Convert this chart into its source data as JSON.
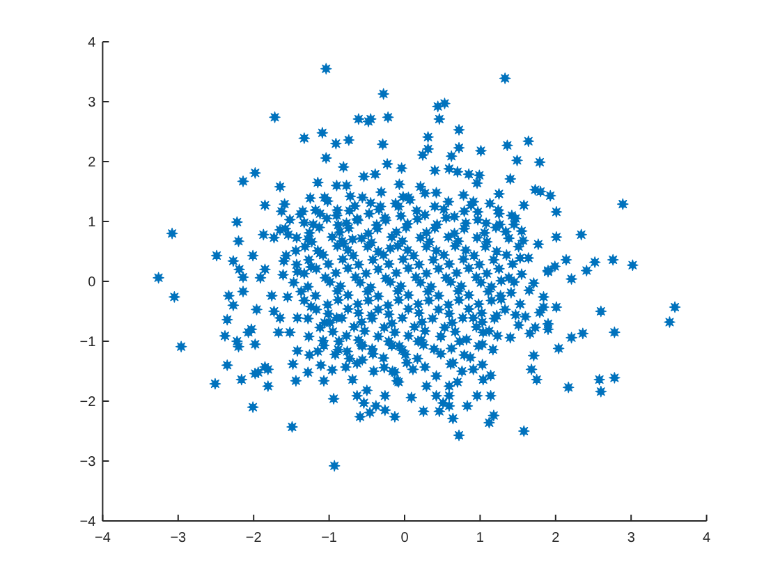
{
  "chart_data": {
    "type": "scatter",
    "color": "#0072bd",
    "marker": "star",
    "xlim": [
      -4,
      4
    ],
    "ylim": [
      -4,
      4
    ],
    "xticks": [
      -4,
      -3,
      -2,
      -1,
      0,
      1,
      2,
      3,
      4
    ],
    "yticks": [
      -4,
      -3,
      -2,
      -1,
      0,
      1,
      2,
      3,
      4
    ],
    "x": [
      -3.26,
      -3.08,
      -2.49,
      -2.27,
      -2.19,
      -2.14,
      -2.2,
      -2.22,
      -2.14,
      -1.98,
      -2.01,
      -1.91,
      -1.85,
      -1.87,
      -1.85,
      -1.72,
      -1.65,
      -1.33,
      -1.04,
      -1.09,
      -0.91,
      -1.04,
      -0.74,
      -0.81,
      -0.61,
      -0.48,
      -0.45,
      -0.22,
      -0.28,
      -0.29,
      -0.23,
      -0.39,
      -0.54,
      -0.04,
      -0.9,
      -0.77,
      -1.15,
      -1.25,
      -1.35,
      -1.59,
      -1.63,
      -1.73,
      -1.54,
      -1.65,
      -1.44,
      -1.6,
      -1.61,
      -1.33,
      -1.28,
      -1.12,
      -1.06,
      -0.89,
      -0.88,
      -0.81,
      -0.69,
      -1.12,
      -0.62,
      -0.56,
      -0.32,
      -0.08,
      -0.25,
      -0.19,
      -1.24,
      -1.42,
      1.33,
      0.44,
      0.53,
      0.46,
      0.31,
      0.72,
      0.24,
      0.31,
      0.72,
      0.62,
      1.01,
      1.36,
      1.64,
      1.49,
      1.79,
      1.4,
      0.4,
      0.59,
      0.7,
      0.85,
      0.99,
      0.96,
      1.25,
      1.73,
      1.8,
      1.93,
      1.58,
      2.01,
      2.89,
      1.25,
      1.45,
      2.01,
      2.34,
      1.77,
      2.14,
      2.52,
      2.76,
      3.02,
      2.41,
      2.21,
      1.9,
      1.99,
      1.53,
      1.34,
      1.08,
      0.91,
      0.79,
      0.42,
      0.21,
      -0.07,
      0.05,
      -3.05,
      -2.96,
      -2.51,
      -2.35,
      -2.38,
      -2.35,
      -2.33,
      -2.27,
      -2.14,
      -2.22,
      -2.2,
      -2.16,
      -2.01,
      -1.98,
      -2.07,
      -2.03,
      -1.96,
      -1.98,
      -1.94,
      -1.85,
      -1.81,
      -1.81,
      -1.76,
      -1.73,
      -1.65,
      -1.49,
      -1.48,
      -1.44,
      -1.28,
      -1.11,
      -1.07,
      -0.94,
      -0.93,
      -0.63,
      -0.59,
      -0.54,
      -0.5,
      -0.46,
      -0.38,
      -0.26,
      -0.26,
      -0.13,
      -0.69,
      -0.78,
      -0.96,
      -0.56,
      -0.41,
      -0.16,
      -0.1,
      -0.76,
      -0.56,
      -1.42,
      -1.26,
      -1.15,
      -1.67,
      -1.52,
      -1.42,
      -0.9,
      -1.06,
      -1.24,
      -1.55,
      -0.87,
      -0.44,
      3.58,
      3.51,
      2.6,
      2.78,
      2.78,
      2.58,
      2.6,
      2.17,
      2.36,
      2.21,
      2.04,
      2.01,
      1.84,
      1.84,
      1.79,
      1.9,
      1.9,
      1.73,
      1.66,
      1.71,
      1.68,
      1.75,
      1.58,
      1.4,
      1.51,
      1.6,
      1.47,
      1.53,
      1.18,
      1.12,
      0.72,
      0.64,
      0.83,
      0.46,
      0.25,
      0.59,
      0.51,
      0.59,
      0.42,
      0.09,
      0.96,
      1.14,
      0.29,
      0.59,
      0.7,
      1.14,
      1.04,
      1.03,
      1.03,
      -0.08,
      -0.13,
      0.64,
      0.76,
      0.91,
      0.42,
      0.11,
      0.62,
      0.79,
      1.04,
      1.22,
      1.28,
      1.41,
      1.65,
      1.71,
      1.28,
      0.91,
      0.73,
      0.48,
      0.18,
      -0.07,
      1.9,
      -0.72,
      -0.31,
      -0.02,
      0.27,
      0.78,
      -1.02,
      -0.66,
      -0.45,
      -0.12,
      0.07,
      0.4,
      0.58,
      0.88,
      1.13,
      -1.38,
      -1.18,
      -0.9,
      -0.73,
      -0.47,
      -0.34,
      -0.05,
      0.16,
      0.27,
      0.52,
      0.66,
      0.97,
      1.24,
      1.42,
      -1.52,
      -1.21,
      -1.03,
      -0.77,
      -0.63,
      -0.37,
      -0.26,
      0.04,
      0.17,
      0.43,
      0.55,
      0.81,
      0.97,
      1.26,
      1.47,
      -1.58,
      -1.26,
      -1.13,
      -0.86,
      -0.74,
      -0.48,
      -0.36,
      -0.11,
      0.02,
      0.29,
      0.4,
      0.66,
      0.79,
      1.06,
      1.21,
      1.55,
      -1.43,
      -1.23,
      -0.96,
      -0.83,
      -0.57,
      -0.44,
      -0.17,
      -0.03,
      0.21,
      0.33,
      0.58,
      0.71,
      0.96,
      1.09,
      1.38,
      1.57,
      -1.32,
      -1.15,
      -0.89,
      -0.75,
      -0.49,
      -0.35,
      -0.09,
      0.04,
      0.29,
      0.42,
      0.67,
      0.81,
      1.07,
      1.22,
      1.51,
      -1.57,
      -1.27,
      -1.08,
      -0.82,
      -0.68,
      -0.42,
      -0.28,
      -0.02,
      0.12,
      0.38,
      0.52,
      0.78,
      0.92,
      1.18,
      1.35,
      1.64,
      -1.43,
      -1.17,
      -1.01,
      -0.75,
      -0.61,
      -0.35,
      -0.21,
      0.05,
      0.19,
      0.45,
      0.59,
      0.85,
      0.99,
      1.25,
      1.43,
      -1.33,
      -1.05,
      -0.91,
      -0.65,
      -0.51,
      -0.25,
      -0.11,
      0.15,
      0.29,
      0.55,
      0.69,
      0.95,
      1.09,
      1.38,
      1.55,
      -1.47,
      -1.28,
      -0.99,
      -0.85,
      -0.59,
      -0.45,
      -0.19,
      -0.05,
      0.21,
      0.35,
      0.61,
      0.75,
      1.01,
      1.15,
      1.45,
      -1.37,
      -1.18,
      -0.89,
      -0.75,
      -0.49,
      -0.35,
      -0.09,
      0.05,
      0.31,
      0.45,
      0.71,
      0.85,
      1.11,
      1.27,
      -1.33,
      -1.02,
      -0.88,
      -0.62,
      -0.48,
      -0.22,
      -0.08,
      0.18,
      0.32,
      0.58,
      0.72,
      0.98,
      1.15,
      -1.17,
      -1.01,
      -0.75,
      -0.61,
      -0.35,
      -0.21,
      0.05,
      0.19,
      0.45,
      0.59,
      0.85,
      1.02,
      1.33,
      -1.28,
      -0.99,
      -0.83,
      -0.57,
      -0.43,
      -0.17,
      -0.03,
      0.23,
      0.37,
      0.63,
      0.77,
      1.03,
      1.19,
      -1.12,
      -0.95,
      -0.67,
      -0.53,
      -0.27,
      -0.13,
      0.13,
      0.27,
      0.53,
      0.67,
      0.95,
      1.12,
      -1.27,
      -1.08,
      -0.77,
      -0.61,
      -0.35,
      -0.21,
      0.05,
      0.22,
      0.48,
      0.82,
      1.23,
      -1.07,
      -0.88,
      -0.57,
      -0.43,
      -0.17,
      -0.03,
      0.25,
      0.39,
      0.98,
      1.17,
      -0.92,
      -0.73,
      -0.42,
      -0.28,
      0.01,
      0.17,
      0.48,
      0.87,
      -0.63,
      -0.27,
      0.03,
      0.27,
      0.61
    ],
    "values": [
      0.06,
      0.8,
      0.43,
      0.34,
      0.2,
      0.07,
      0.67,
      0.99,
      1.67,
      1.81,
      0.43,
      0.06,
      0.2,
      0.78,
      1.27,
      2.74,
      1.58,
      2.39,
      3.55,
      2.48,
      2.3,
      2.06,
      2.36,
      1.91,
      2.71,
      2.67,
      2.71,
      2.74,
      3.13,
      2.29,
      1.96,
      1.79,
      1.75,
      1.89,
      1.6,
      1.6,
      1.65,
      1.39,
      1.17,
      1.29,
      1.17,
      0.73,
      0.78,
      0.86,
      0.51,
      0.34,
      0.11,
      0.98,
      0.7,
      1.13,
      1.4,
      1.19,
      0.94,
      0.63,
      0.7,
      0.47,
      1.02,
      1.4,
      1.25,
      1.25,
      1.02,
      0.55,
      0.24,
      0.16,
      3.39,
      2.92,
      2.97,
      2.71,
      2.41,
      2.53,
      2.11,
      2.21,
      2.23,
      2.09,
      2.18,
      2.27,
      2.34,
      2.02,
      1.99,
      1.71,
      1.85,
      1.88,
      1.83,
      1.79,
      1.77,
      1.64,
      1.46,
      1.53,
      1.5,
      1.43,
      1.27,
      1.16,
      1.29,
      1.13,
      0.95,
      0.74,
      0.78,
      0.62,
      0.36,
      0.32,
      0.36,
      0.27,
      0.18,
      0.04,
      0.18,
      0.25,
      0.39,
      0.83,
      0.97,
      1.33,
      1.17,
      1.48,
      1.58,
      1.62,
      1.4,
      -0.26,
      -1.09,
      -1.71,
      -1.4,
      -0.91,
      -0.64,
      -0.24,
      -0.4,
      -0.17,
      -1,
      -1.09,
      -1.64,
      -2.1,
      -1.05,
      -0.85,
      -0.8,
      -0.47,
      -1.54,
      -1.52,
      -1.43,
      -1.47,
      -1.75,
      -0.24,
      -0.5,
      -0.61,
      -2.43,
      -1.38,
      -1.66,
      -1.52,
      -1.4,
      -1.66,
      -1.96,
      -3.08,
      -1.91,
      -2.26,
      -2.03,
      -1.82,
      -2.19,
      -2.08,
      -2.15,
      -1.91,
      -2.26,
      -1.64,
      -1.43,
      -1.48,
      -1.31,
      -1.5,
      -1.5,
      -1.66,
      -1.17,
      -1.08,
      -1.16,
      -1.23,
      -1.17,
      -0.85,
      -0.85,
      -0.61,
      -0.61,
      -0.69,
      -0.42,
      -0.26,
      -1,
      -0.57,
      -0.43,
      -0.68,
      -0.5,
      -0.85,
      -1.61,
      -1.64,
      -1.84,
      -1.77,
      -0.87,
      -0.94,
      -1.12,
      -0.43,
      -0.26,
      -0.43,
      -0.52,
      -0.71,
      -0.8,
      -0.77,
      -0.87,
      -1.24,
      -1.47,
      -1.64,
      -2.5,
      -0.94,
      -0.73,
      -0.59,
      -0.56,
      -0.38,
      -2.24,
      -2.36,
      -2.57,
      -2.29,
      -2.08,
      -2.17,
      -2.17,
      -2.08,
      -2.03,
      -1.91,
      -1.91,
      -1.94,
      -1.91,
      -1.91,
      -1.75,
      -1.75,
      -1.68,
      -1.57,
      -1.64,
      -1.39,
      -1.05,
      -1.68,
      -1.52,
      -1.36,
      -1.5,
      -1.47,
      -1.58,
      -1.47,
      -1.12,
      -1.23,
      -0.85,
      -0.57,
      -0.3,
      -0.19,
      -0.15,
      -0.03,
      0.01,
      -0.61,
      -1,
      -0.92,
      -1,
      -1.08,
      0.16,
      1.42,
      1.49,
      1.41,
      1.47,
      1.44,
      1.34,
      1.26,
      1.31,
      1.3,
      1.36,
      1.25,
      1.33,
      1.27,
      1.3,
      1.12,
      1.19,
      1.1,
      1.18,
      1.13,
      1.2,
      1.09,
      1.18,
      1.11,
      1.2,
      1.08,
      1.16,
      1.19,
      1.1,
      1.03,
      0.95,
      1.05,
      0.97,
      1.04,
      0.94,
      1.06,
      0.96,
      1.04,
      0.95,
      1.06,
      0.97,
      1.03,
      0.95,
      1.05,
      0.88,
      0.81,
      0.9,
      0.82,
      0.89,
      0.8,
      0.88,
      0.82,
      0.9,
      0.81,
      0.89,
      0.8,
      0.88,
      0.81,
      0.9,
      0.84,
      0.73,
      0.66,
      0.74,
      0.67,
      0.72,
      0.65,
      0.74,
      0.67,
      0.73,
      0.66,
      0.74,
      0.67,
      0.73,
      0.66,
      0.72,
      0.68,
      0.58,
      0.51,
      0.59,
      0.52,
      0.58,
      0.5,
      0.59,
      0.52,
      0.58,
      0.51,
      0.59,
      0.52,
      0.58,
      0.5,
      0.58,
      0.43,
      0.36,
      0.44,
      0.37,
      0.43,
      0.36,
      0.44,
      0.37,
      0.43,
      0.36,
      0.44,
      0.37,
      0.43,
      0.36,
      0.44,
      0.39,
      0.28,
      0.21,
      0.29,
      0.22,
      0.28,
      0.2,
      0.29,
      0.22,
      0.28,
      0.21,
      0.29,
      0.22,
      0.28,
      0.21,
      0.29,
      0.13,
      0.06,
      0.14,
      0.07,
      0.13,
      0.05,
      0.14,
      0.07,
      0.13,
      0.06,
      0.14,
      0.07,
      0.13,
      0.06,
      0.12,
      -0.02,
      -0.09,
      -0.01,
      -0.08,
      -0.02,
      -0.1,
      -0.01,
      -0.08,
      -0.02,
      -0.09,
      -0.01,
      -0.08,
      -0.02,
      -0.09,
      -0.01,
      -0.17,
      -0.24,
      -0.16,
      -0.23,
      -0.17,
      -0.25,
      -0.16,
      -0.23,
      -0.17,
      -0.24,
      -0.16,
      -0.23,
      -0.17,
      -0.24,
      -0.32,
      -0.39,
      -0.31,
      -0.38,
      -0.32,
      -0.4,
      -0.31,
      -0.38,
      -0.32,
      -0.39,
      -0.31,
      -0.38,
      -0.32,
      -0.47,
      -0.54,
      -0.46,
      -0.53,
      -0.47,
      -0.55,
      -0.46,
      -0.53,
      -0.47,
      -0.54,
      -0.46,
      -0.53,
      -0.47,
      -0.62,
      -0.69,
      -0.61,
      -0.68,
      -0.62,
      -0.7,
      -0.61,
      -0.68,
      -0.62,
      -0.69,
      -0.61,
      -0.68,
      -0.62,
      -0.77,
      -0.84,
      -0.76,
      -0.83,
      -0.77,
      -0.85,
      -0.76,
      -0.83,
      -0.77,
      -0.84,
      -0.76,
      -0.83,
      -0.92,
      -0.99,
      -0.91,
      -0.98,
      -0.92,
      -1,
      -0.91,
      -0.98,
      -0.92,
      -0.97,
      -0.91,
      -1.07,
      -1.14,
      -1.06,
      -1.13,
      -1.07,
      -1.15,
      -1.06,
      -1.13,
      -1.08,
      -1.14,
      -1.22,
      -1.29,
      -1.21,
      -1.28,
      -1.22,
      -1.29,
      -1.21,
      -1.27,
      -1.37,
      -1.44,
      -1.36,
      -1.43,
      -1.38
    ]
  }
}
